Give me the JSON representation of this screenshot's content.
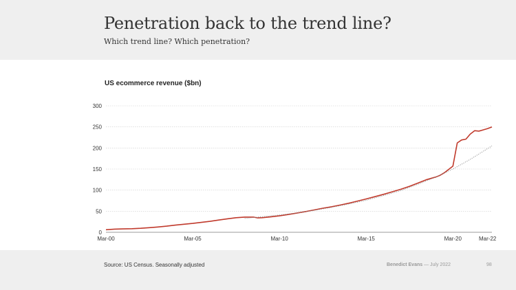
{
  "slide": {
    "title": "Penetration back to the trend line?",
    "subtitle": "Which trend line? Which penetration?",
    "source": "Source: US Census. Seasonally adjusted",
    "author": "Benedict Evans",
    "date": " — July 2022",
    "page_number": "98"
  },
  "colors": {
    "actual_line": "#c0392b",
    "trend_line": "#888888",
    "grid": "#cccccc",
    "header_bg": "#efefef"
  },
  "chart_data": {
    "type": "line",
    "title": "US ecommerce revenue ($bn)",
    "xlabel": "",
    "ylabel": "",
    "xlim": [
      2000.0,
      2022.25
    ],
    "ylim": [
      0,
      300
    ],
    "yticks": [
      0,
      50,
      100,
      150,
      200,
      250,
      300
    ],
    "xticks": [
      {
        "label": "Mar-00",
        "value": 2000.0
      },
      {
        "label": "Mar-05",
        "value": 2005.0
      },
      {
        "label": "Mar-10",
        "value": 2010.0
      },
      {
        "label": "Mar-15",
        "value": 2015.0
      },
      {
        "label": "Mar-20",
        "value": 2020.0
      },
      {
        "label": "Mar-22",
        "value": 2022.0
      }
    ],
    "grid": true,
    "legend": "none",
    "series": [
      {
        "style": "solid",
        "x": [
          2000.0,
          2000.5,
          2001.0,
          2001.5,
          2002.0,
          2002.5,
          2003.0,
          2003.5,
          2004.0,
          2004.5,
          2005.0,
          2005.5,
          2006.0,
          2006.5,
          2007.0,
          2007.5,
          2008.0,
          2008.5,
          2008.75,
          2009.0,
          2009.5,
          2010.0,
          2010.5,
          2011.0,
          2011.5,
          2012.0,
          2012.5,
          2013.0,
          2013.5,
          2014.0,
          2014.5,
          2015.0,
          2015.5,
          2016.0,
          2016.5,
          2017.0,
          2017.5,
          2018.0,
          2018.5,
          2019.0,
          2019.25,
          2019.5,
          2019.75,
          2020.0,
          2020.25,
          2020.5,
          2020.75,
          2021.0,
          2021.25,
          2021.5,
          2021.75,
          2022.0,
          2022.25
        ],
        "y": [
          6,
          7.5,
          8,
          8.5,
          9.5,
          11,
          12.5,
          14.5,
          17,
          19,
          21,
          23.5,
          26,
          29,
          32,
          34.5,
          36,
          36,
          34,
          34.5,
          36.5,
          39,
          42,
          45.5,
          49,
          53,
          57,
          60.5,
          64.5,
          69,
          74,
          79,
          84.5,
          90,
          96,
          102,
          109,
          117,
          125,
          131,
          135,
          141,
          149,
          157,
          212,
          219,
          221,
          233,
          241,
          240,
          243,
          246,
          250
        ]
      },
      {
        "style": "dotted",
        "x": [
          2008.0,
          2009.0,
          2010.0,
          2011.0,
          2012.0,
          2013.0,
          2014.0,
          2015.0,
          2016.0,
          2017.0,
          2018.0,
          2019.0,
          2020.0,
          2021.0,
          2022.25
        ],
        "y": [
          33,
          37,
          41,
          46,
          52,
          59,
          67,
          76,
          87,
          99,
          114,
          131,
          150,
          173,
          205
        ]
      }
    ]
  }
}
